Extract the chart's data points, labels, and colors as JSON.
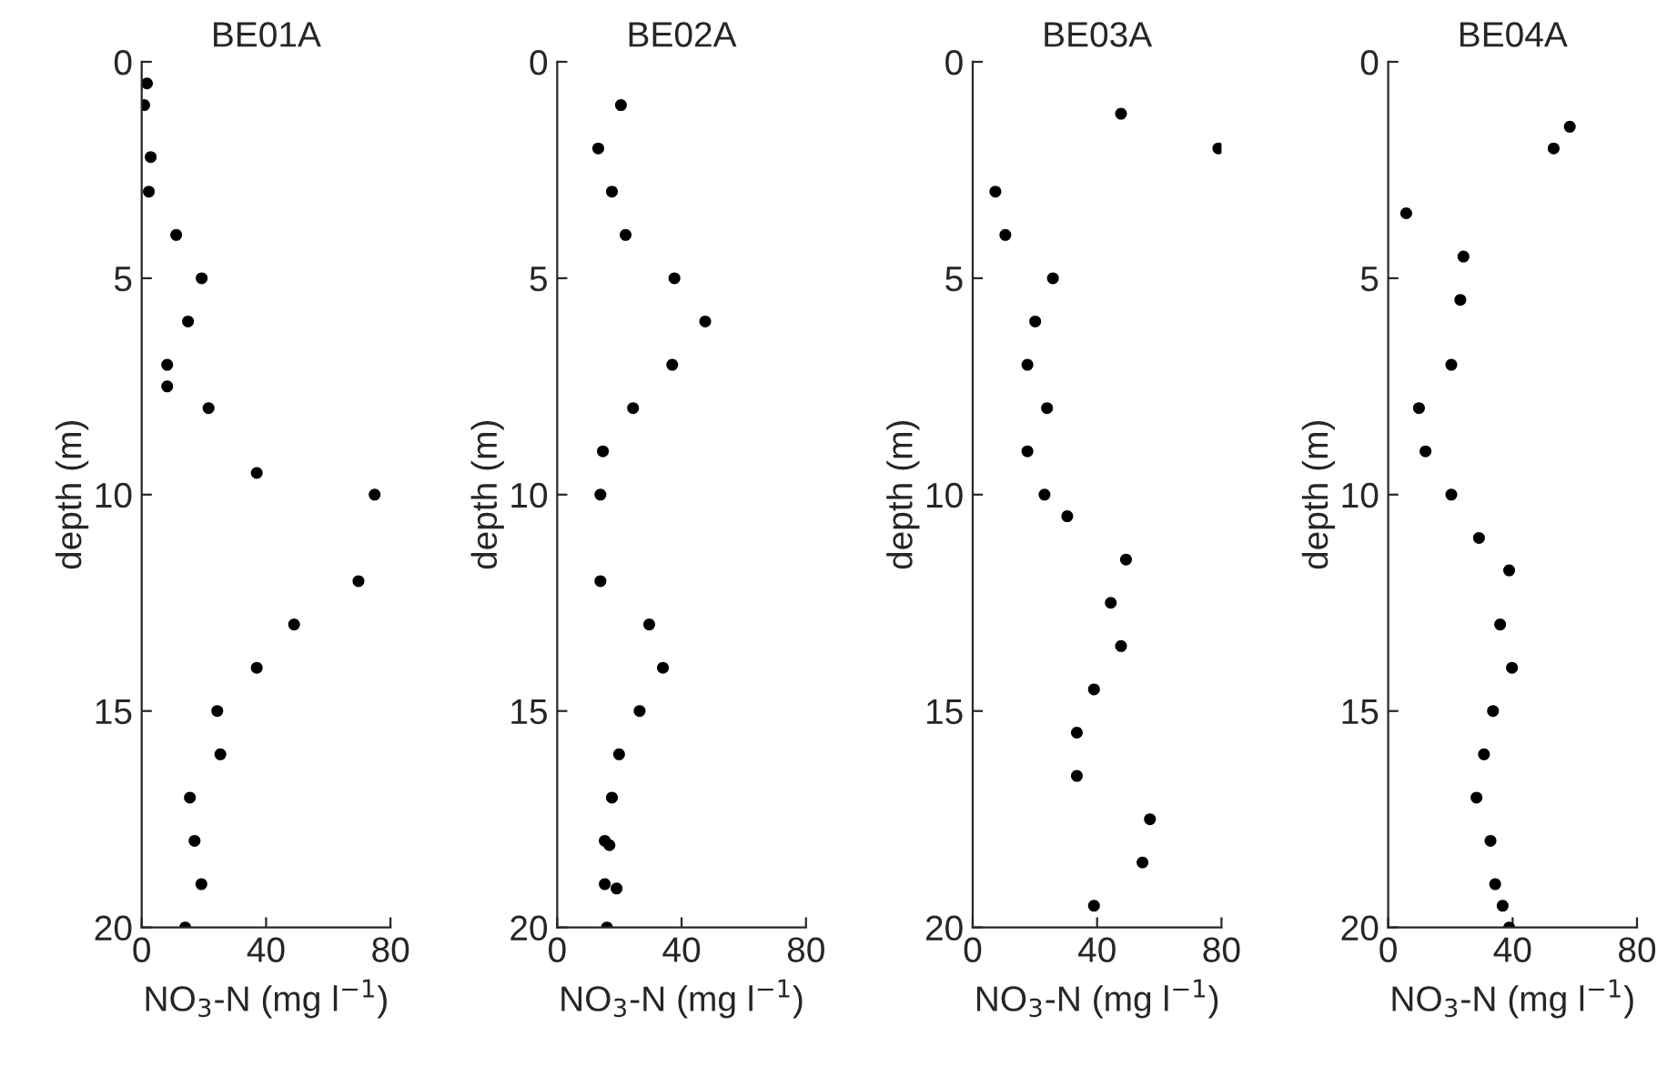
{
  "chart_data": [
    {
      "type": "scatter",
      "title": "BE01A",
      "xlabel": "NO$_{3}$-N (mg l$^{−1}$)",
      "ylabel": "depth (m)",
      "xlim": [
        0,
        80
      ],
      "xticks": [
        0,
        40,
        80
      ],
      "ylim": [
        20,
        0
      ],
      "yticks": [
        0,
        5,
        10,
        15,
        20
      ],
      "grid": false,
      "marker": "circle",
      "series": [
        {
          "color": "#000000",
          "x": [
            1.7,
            0.8,
            2.9,
            2.3,
            11.1,
            19.3,
            14.9,
            8.2,
            8.2,
            21.5,
            37,
            74.9,
            69.7,
            49,
            37,
            24.3,
            25.3,
            15.5,
            17,
            19.2,
            14
          ],
          "values": [
            0.5,
            1,
            2.2,
            3,
            4,
            5,
            6,
            7,
            7.5,
            8,
            9.5,
            10,
            12,
            13,
            14,
            15,
            16,
            17,
            18,
            19,
            20
          ]
        }
      ]
    },
    {
      "type": "scatter",
      "title": "BE02A",
      "xlabel": "NO$_{3}$-N (mg l$^{−1}$)",
      "ylabel": "depth (m)",
      "xlim": [
        0,
        80
      ],
      "xticks": [
        0,
        40,
        80
      ],
      "ylim": [
        20,
        0
      ],
      "yticks": [
        0,
        5,
        10,
        15,
        20
      ],
      "grid": false,
      "marker": "circle",
      "series": [
        {
          "color": "#000000",
          "x": [
            20.5,
            13.2,
            17.6,
            22,
            37.7,
            47.6,
            37,
            24.4,
            14.7,
            13.9,
            13.9,
            29.6,
            34,
            26.5,
            19.9,
            17.6,
            15.3,
            16.8,
            15.3,
            19.1,
            16
          ],
          "values": [
            1,
            2,
            3,
            4,
            5,
            6,
            7,
            8,
            9,
            10,
            12,
            13,
            14,
            15,
            16,
            17,
            18,
            18.1,
            19,
            19.1,
            20
          ]
        }
      ]
    },
    {
      "type": "scatter",
      "title": "BE03A",
      "xlabel": "NO$_{3}$-N (mg l$^{−1}$)",
      "ylabel": "depth (m)",
      "xlim": [
        0,
        80
      ],
      "xticks": [
        0,
        40,
        80
      ],
      "ylim": [
        20,
        0
      ],
      "yticks": [
        0,
        5,
        10,
        15,
        20
      ],
      "grid": false,
      "marker": "circle",
      "series": [
        {
          "color": "#000000",
          "x": [
            47.7,
            79,
            7.3,
            10.5,
            25.8,
            20.1,
            17.6,
            23.9,
            17.6,
            23.1,
            30.4,
            49.3,
            44.4,
            47.7,
            39,
            33.5,
            33.5,
            57,
            54.6,
            39
          ],
          "values": [
            1.2,
            2,
            3,
            4,
            5,
            6,
            7,
            8,
            9,
            10,
            10.5,
            11.5,
            12.5,
            13.5,
            14.5,
            15.5,
            16.5,
            17.5,
            18.5,
            19.5
          ]
        }
      ]
    },
    {
      "type": "scatter",
      "title": "BE04A",
      "xlabel": "NO$_{3}$-N (mg l$^{−1}$)",
      "ylabel": "depth (m)",
      "xlim": [
        0,
        80
      ],
      "xticks": [
        0,
        40,
        80
      ],
      "ylim": [
        20,
        0
      ],
      "yticks": [
        0,
        5,
        10,
        15,
        20
      ],
      "grid": false,
      "marker": "circle",
      "series": [
        {
          "color": "#000000",
          "x": [
            58.4,
            53.2,
            5.8,
            24.2,
            23.2,
            20.3,
            9.9,
            12,
            20.3,
            29.2,
            38.9,
            36,
            39.8,
            33.7,
            30.8,
            28.4,
            32.9,
            34.4,
            36.8,
            38.9
          ],
          "values": [
            1.5,
            2,
            3.5,
            4.5,
            5.5,
            7,
            8,
            9,
            10,
            11,
            11.75,
            13,
            14,
            15,
            16,
            17,
            18,
            19,
            19.5,
            20
          ]
        }
      ]
    }
  ]
}
